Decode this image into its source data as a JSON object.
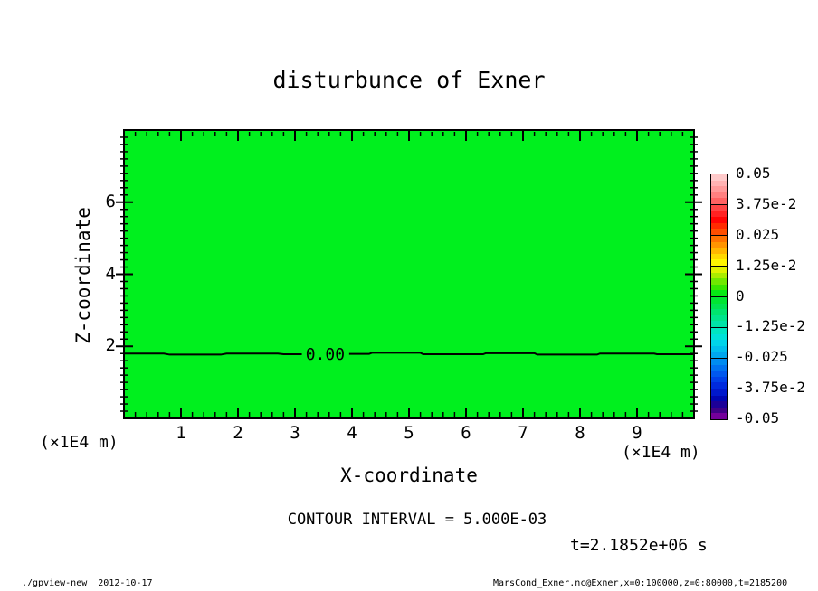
{
  "title": "disturbunce of Exner",
  "plot": {
    "fill_color": "#00f01e",
    "frame_color": "#000000",
    "zero_contour_label": "0.00"
  },
  "axes": {
    "x": {
      "label": "X-coordinate",
      "unit_left": "(×1E4 m)",
      "unit_right": "(×1E4 m)",
      "min": 0,
      "max": 10,
      "major_ticks": [
        1,
        2,
        3,
        4,
        5,
        6,
        7,
        8,
        9
      ],
      "minor_step": 0.2
    },
    "y": {
      "label": "Z-coordinate",
      "min": 0,
      "max": 8,
      "major_ticks": [
        2,
        4,
        6
      ],
      "minor_step": 0.2
    }
  },
  "colorbar": {
    "labels": [
      "0.05",
      "3.75e-2",
      "0.025",
      "1.25e-2",
      "0",
      "-1.25e-2",
      "-0.025",
      "-3.75e-2",
      "-0.05"
    ],
    "segments": [
      [
        "#ffcaca",
        "#ffb2b2",
        "#ff9a9a",
        "#ff8080",
        "#ff6262"
      ],
      [
        "#ff4444",
        "#ff2222",
        "#ff0404",
        "#ff2a00",
        "#ff4e00"
      ],
      [
        "#ff7200",
        "#ff9400",
        "#ffb600",
        "#ffd800",
        "#fff600"
      ],
      [
        "#dff200",
        "#aaec00",
        "#70e800",
        "#38e600",
        "#06ea14"
      ],
      [
        "#00e632",
        "#00e450",
        "#00e46e",
        "#00e48c",
        "#00e4a8"
      ],
      [
        "#00e6c2",
        "#00e2da",
        "#00d4ea",
        "#00beee",
        "#00a6ee"
      ],
      [
        "#008cf0",
        "#0072f0",
        "#0058ee",
        "#0040e8",
        "#002ade"
      ],
      [
        "#0018cc",
        "#0006b2",
        "#1c0098",
        "#400086",
        "#74009a"
      ]
    ]
  },
  "annotations": {
    "contour_interval": "CONTOUR INTERVAL = 5.000E-03",
    "time": "t=2.1852e+06 s"
  },
  "footer": {
    "left": "./gpview-new  2012-10-17",
    "right": "MarsCond_Exner.nc@Exner,x=0:100000,z=0:80000,t=2185200"
  },
  "chart_data": {
    "type": "filled-contour",
    "title": "disturbunce of Exner",
    "xlabel": "X-coordinate",
    "ylabel": "Z-coordinate",
    "x_unit": "(×1E4 m)",
    "y_unit": "(×1E4 m)",
    "xlim": [
      0,
      10
    ],
    "ylim": [
      0,
      8
    ],
    "x_major_ticks": [
      1,
      2,
      3,
      4,
      5,
      6,
      7,
      8,
      9
    ],
    "y_major_ticks": [
      2,
      4,
      6
    ],
    "minor_tick_step": 0.2,
    "contour_interval": 0.005,
    "colorbar_levels": [
      0.05,
      0.0375,
      0.025,
      0.0125,
      0,
      -0.0125,
      -0.025,
      -0.0375,
      -0.05
    ],
    "colorbar_range": [
      -0.05,
      0.05
    ],
    "time_seconds": 2185200,
    "field_description": "Exner-function disturbance is approximately 0 (single green palette band) over the whole domain; one 0.00 contour line runs horizontally near z = 1.8 (x1E4 m).",
    "zero_contour": {
      "label": "0.00",
      "label_x": 3.53,
      "label_z": 1.78,
      "segments": [
        {
          "x": [
            0,
            0.7,
            0.8,
            1.7,
            1.8,
            2.7,
            2.8,
            3.12
          ],
          "z": [
            1.8,
            1.8,
            1.77,
            1.77,
            1.8,
            1.8,
            1.78,
            1.78
          ]
        },
        {
          "x": [
            3.95,
            4.3,
            4.35,
            5.2,
            5.25,
            6.3,
            6.35,
            7.2,
            7.25,
            8.3,
            8.35,
            9.3,
            9.35,
            10
          ],
          "z": [
            1.79,
            1.79,
            1.82,
            1.82,
            1.78,
            1.78,
            1.81,
            1.81,
            1.77,
            1.77,
            1.8,
            1.8,
            1.78,
            1.78
          ]
        }
      ]
    }
  }
}
